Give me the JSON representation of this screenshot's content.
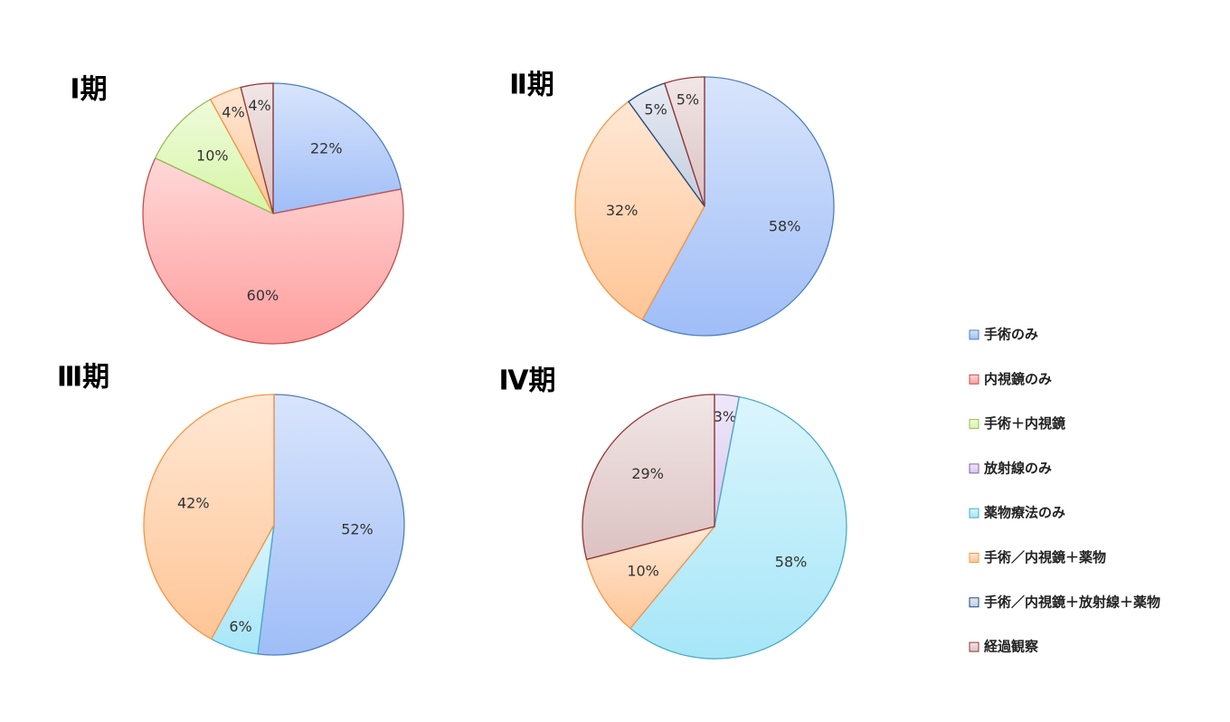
{
  "chart_data": [
    {
      "type": "pie",
      "title": "Ⅰ期",
      "values": [
        22,
        60,
        10,
        null,
        null,
        4,
        null,
        4
      ],
      "value_labels": [
        "22%",
        "60%",
        "10%",
        null,
        null,
        "4%",
        null,
        "4%"
      ]
    },
    {
      "type": "pie",
      "title": "Ⅱ期",
      "values": [
        58,
        null,
        null,
        null,
        null,
        32,
        5,
        5
      ],
      "value_labels": [
        "58%",
        null,
        null,
        null,
        null,
        "32%",
        "5%",
        "5%"
      ]
    },
    {
      "type": "pie",
      "title": "Ⅲ期",
      "values": [
        52,
        null,
        null,
        null,
        6,
        42,
        null,
        null
      ],
      "value_labels": [
        "52%",
        null,
        null,
        null,
        "6%",
        "42%",
        null,
        null
      ]
    },
    {
      "type": "pie",
      "title": "Ⅳ期",
      "values": [
        null,
        null,
        null,
        3,
        58,
        10,
        null,
        29
      ],
      "value_labels": [
        null,
        null,
        null,
        "3%",
        "58%",
        "10%",
        null,
        "29%"
      ]
    }
  ],
  "legend": {
    "categories": [
      "手術のみ",
      "内視鏡のみ",
      "手術＋内視鏡",
      "放射線のみ",
      "薬物療法のみ",
      "手術／内視鏡＋薬物",
      "手術／内視鏡＋放射線＋薬物",
      "経過観察"
    ],
    "colors": [
      "#9fbdf7",
      "#ff9d9d",
      "#d6f5a6",
      "#d8c6ef",
      "#a6e6f8",
      "#ffc596",
      "#c3cde0",
      "#dcc1c1"
    ],
    "edge_colors": [
      "#4f81bd",
      "#c0504d",
      "#9bbb59",
      "#8064a2",
      "#4bacc6",
      "#f79646",
      "#1f497d",
      "#943634"
    ],
    "position": "right"
  }
}
